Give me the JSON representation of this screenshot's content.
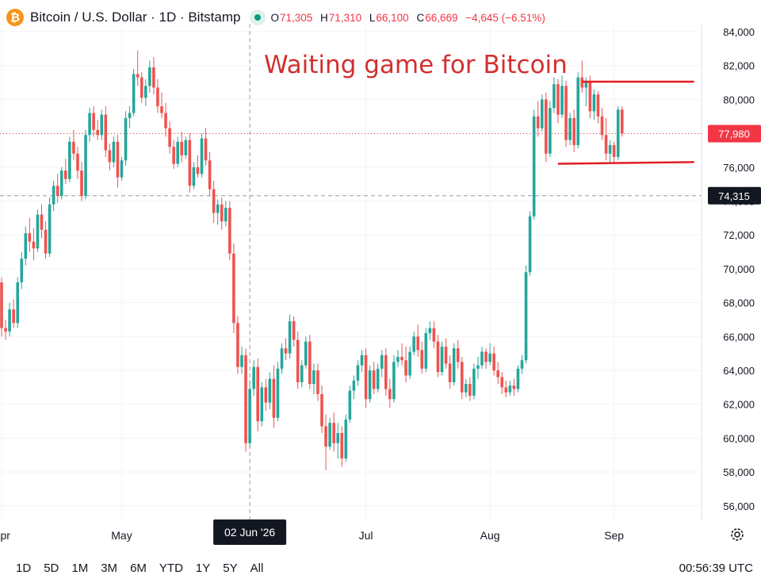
{
  "header": {
    "coin_icon": "bitcoin-icon",
    "symbol": "Bitcoin / U.S. Dollar · 1D · Bitstamp",
    "o_label": "O",
    "o_value": "71,305",
    "h_label": "H",
    "h_value": "71,310",
    "l_label": "L",
    "l_value": "66,100",
    "c_label": "C",
    "c_value": "66,669",
    "change": "−4,645 (−6.51%)"
  },
  "annotation": {
    "text": "Waiting game for Bitcoin",
    "color": "#d32f2f"
  },
  "price_labels": {
    "last": "77,980",
    "crosshair": "74,315",
    "crosshair_date": "02 Jun '26"
  },
  "timeframes": [
    "1D",
    "5D",
    "1M",
    "3M",
    "6M",
    "YTD",
    "1Y",
    "5Y",
    "All"
  ],
  "clock": "00:56:39 UTC",
  "colors": {
    "up": "#26a69a",
    "down": "#ef5350",
    "trendline": "#e31b23",
    "last_price": "#f23645"
  },
  "chart_data": {
    "type": "candlestick",
    "y_ticks": [
      "84,000",
      "82,000",
      "80,000",
      "78,000",
      "76,000",
      "74,000",
      "72,000",
      "70,000",
      "68,000",
      "66,000",
      "64,000",
      "62,000",
      "60,000",
      "58,000",
      "56,000"
    ],
    "x_ticks": [
      {
        "label": "Apr",
        "date": "2026-04-01"
      },
      {
        "label": "May",
        "date": "2026-05-01"
      },
      {
        "label": "Jul",
        "date": "2026-07-01"
      },
      {
        "label": "Aug",
        "date": "2026-08-01"
      },
      {
        "label": "Sep",
        "date": "2026-09-01"
      }
    ],
    "crosshair": {
      "date": "2026-06-02",
      "price": 74315
    },
    "last_price": 77980,
    "ylim": [
      55000,
      85500
    ],
    "grid": true,
    "trendlines": [
      {
        "from": [
          "2026-08-24",
          81050
        ],
        "to": [
          "2026-09-21",
          81050
        ]
      },
      {
        "from": [
          "2026-08-18",
          76200
        ],
        "to": [
          "2026-09-21",
          76300
        ]
      }
    ],
    "candles_ohlc": [
      [
        69200,
        69500,
        66000,
        66500
      ],
      [
        66500,
        67000,
        65800,
        66300
      ],
      [
        66300,
        68000,
        66000,
        67600
      ],
      [
        67600,
        68200,
        66500,
        66800
      ],
      [
        66800,
        69500,
        66500,
        69200
      ],
      [
        69200,
        71000,
        68800,
        70600
      ],
      [
        70600,
        72500,
        70200,
        72100
      ],
      [
        72100,
        73000,
        71000,
        71600
      ],
      [
        71600,
        72400,
        70500,
        71200
      ],
      [
        71200,
        73500,
        71000,
        73200
      ],
      [
        73200,
        73800,
        71800,
        72300
      ],
      [
        72300,
        72800,
        70600,
        70900
      ],
      [
        70900,
        74200,
        70700,
        73800
      ],
      [
        73800,
        75200,
        73400,
        74900
      ],
      [
        74900,
        75600,
        73900,
        74300
      ],
      [
        74300,
        76000,
        74100,
        75800
      ],
      [
        75800,
        76500,
        75000,
        75300
      ],
      [
        75300,
        77800,
        75100,
        77500
      ],
      [
        77500,
        78200,
        76400,
        76800
      ],
      [
        76800,
        77200,
        75300,
        75800
      ],
      [
        75800,
        76300,
        74000,
        74300
      ],
      [
        74300,
        78200,
        74100,
        77900
      ],
      [
        77900,
        79500,
        77500,
        79200
      ],
      [
        79200,
        79600,
        77800,
        78200
      ],
      [
        78200,
        78800,
        77600,
        77900
      ],
      [
        77900,
        79400,
        77600,
        79100
      ],
      [
        79100,
        79600,
        76600,
        77000
      ],
      [
        77000,
        77400,
        75800,
        76300
      ],
      [
        76300,
        77800,
        76000,
        77500
      ],
      [
        77500,
        77900,
        74800,
        75400
      ],
      [
        75400,
        76600,
        75200,
        76400
      ],
      [
        76400,
        79300,
        76100,
        78900
      ],
      [
        78900,
        79600,
        78300,
        79200
      ],
      [
        79200,
        81800,
        79000,
        81500
      ],
      [
        81500,
        82900,
        80800,
        81300
      ],
      [
        81300,
        81600,
        79800,
        80100
      ],
      [
        80100,
        81200,
        79600,
        80800
      ],
      [
        80800,
        82300,
        80400,
        81900
      ],
      [
        81900,
        82500,
        80300,
        80700
      ],
      [
        80700,
        81200,
        79200,
        79600
      ],
      [
        79600,
        80400,
        78900,
        79200
      ],
      [
        79200,
        79800,
        77800,
        78300
      ],
      [
        78300,
        78700,
        76800,
        77200
      ],
      [
        77200,
        77600,
        75900,
        76200
      ],
      [
        76200,
        77800,
        76000,
        77500
      ],
      [
        77500,
        78100,
        76300,
        76700
      ],
      [
        76700,
        77800,
        76500,
        77600
      ],
      [
        77600,
        78000,
        74500,
        74900
      ],
      [
        74900,
        76300,
        74700,
        76000
      ],
      [
        76000,
        76700,
        75400,
        75600
      ],
      [
        75600,
        78000,
        75400,
        77700
      ],
      [
        77700,
        78300,
        76100,
        76400
      ],
      [
        76400,
        76900,
        74300,
        74700
      ],
      [
        74700,
        75200,
        72700,
        73300
      ],
      [
        73300,
        74100,
        72600,
        73800
      ],
      [
        73800,
        74200,
        72300,
        72800
      ],
      [
        72800,
        74000,
        72500,
        73600
      ],
      [
        73600,
        74000,
        70500,
        70900
      ],
      [
        70900,
        71500,
        66200,
        66800
      ],
      [
        66800,
        67200,
        63800,
        64200
      ],
      [
        64200,
        65400,
        63800,
        64900
      ],
      [
        64900,
        65300,
        59200,
        59700
      ],
      [
        59700,
        63400,
        59400,
        62900
      ],
      [
        62900,
        64600,
        62500,
        64200
      ],
      [
        64200,
        64700,
        60400,
        61000
      ],
      [
        61000,
        63300,
        60700,
        63000
      ],
      [
        63000,
        63500,
        61600,
        62100
      ],
      [
        62100,
        63900,
        61700,
        63500
      ],
      [
        63500,
        64300,
        60600,
        61200
      ],
      [
        61200,
        64500,
        61000,
        64100
      ],
      [
        64100,
        65600,
        63800,
        65300
      ],
      [
        65300,
        65900,
        64600,
        65000
      ],
      [
        65000,
        67300,
        64700,
        66900
      ],
      [
        66900,
        67200,
        65400,
        65800
      ],
      [
        65800,
        66300,
        62900,
        63300
      ],
      [
        63300,
        64600,
        63000,
        64300
      ],
      [
        64300,
        66000,
        64100,
        65700
      ],
      [
        65700,
        66100,
        62900,
        63200
      ],
      [
        63200,
        64400,
        62600,
        64000
      ],
      [
        64000,
        64400,
        62200,
        62600
      ],
      [
        62600,
        63100,
        60300,
        60700
      ],
      [
        60700,
        61400,
        58100,
        59500
      ],
      [
        59500,
        61200,
        59300,
        60900
      ],
      [
        60900,
        61500,
        59200,
        59700
      ],
      [
        59700,
        60900,
        58800,
        60300
      ],
      [
        60300,
        60700,
        58300,
        58800
      ],
      [
        58800,
        61400,
        58600,
        61100
      ],
      [
        61100,
        63100,
        60900,
        62800
      ],
      [
        62800,
        63700,
        62300,
        63400
      ],
      [
        63400,
        64600,
        63100,
        64300
      ],
      [
        64300,
        65200,
        63900,
        64900
      ],
      [
        64900,
        65300,
        61800,
        62300
      ],
      [
        62300,
        64300,
        62100,
        64000
      ],
      [
        64000,
        64500,
        62600,
        62900
      ],
      [
        62900,
        64400,
        62700,
        64100
      ],
      [
        64100,
        65200,
        63600,
        64900
      ],
      [
        64900,
        65300,
        62500,
        62900
      ],
      [
        62900,
        63500,
        61800,
        62300
      ],
      [
        62300,
        64900,
        62100,
        64500
      ],
      [
        64500,
        65200,
        64200,
        64800
      ],
      [
        64800,
        65600,
        64300,
        64600
      ],
      [
        64600,
        65400,
        63300,
        63700
      ],
      [
        63700,
        65400,
        63500,
        65100
      ],
      [
        65100,
        66300,
        64900,
        66000
      ],
      [
        66000,
        66700,
        64800,
        65200
      ],
      [
        65200,
        65700,
        63800,
        64100
      ],
      [
        64100,
        66500,
        63900,
        66200
      ],
      [
        66200,
        66900,
        65800,
        66500
      ],
      [
        66500,
        66900,
        65300,
        65700
      ],
      [
        65700,
        66100,
        63600,
        63900
      ],
      [
        63900,
        65700,
        63700,
        65400
      ],
      [
        65400,
        65900,
        64100,
        64400
      ],
      [
        64400,
        64900,
        62900,
        63300
      ],
      [
        63300,
        65600,
        63100,
        65300
      ],
      [
        65300,
        65800,
        64100,
        64500
      ],
      [
        64500,
        64800,
        62300,
        62700
      ],
      [
        62700,
        63500,
        62400,
        63200
      ],
      [
        63200,
        63600,
        62200,
        62500
      ],
      [
        62500,
        64400,
        62300,
        64100
      ],
      [
        64100,
        64800,
        63500,
        64300
      ],
      [
        64300,
        65400,
        64100,
        65100
      ],
      [
        65100,
        65300,
        64100,
        64500
      ],
      [
        64500,
        65600,
        64300,
        65000
      ],
      [
        65000,
        65400,
        63700,
        64000
      ],
      [
        64000,
        64500,
        63200,
        63600
      ],
      [
        63600,
        63900,
        62600,
        63000
      ],
      [
        63000,
        63400,
        62400,
        62700
      ],
      [
        62700,
        63400,
        62500,
        63100
      ],
      [
        63100,
        63500,
        62500,
        62900
      ],
      [
        62900,
        64300,
        62700,
        64100
      ],
      [
        64100,
        64900,
        63800,
        64600
      ],
      [
        64600,
        70200,
        64400,
        69800
      ],
      [
        69800,
        73400,
        69600,
        73100
      ],
      [
        73100,
        79400,
        72900,
        79000
      ],
      [
        79000,
        79900,
        77800,
        78300
      ],
      [
        78300,
        80300,
        78100,
        80000
      ],
      [
        80000,
        80400,
        76300,
        76800
      ],
      [
        76800,
        79900,
        76600,
        79500
      ],
      [
        79500,
        81300,
        79200,
        80900
      ],
      [
        80900,
        81200,
        78600,
        79100
      ],
      [
        79100,
        81400,
        78900,
        80800
      ],
      [
        80800,
        81100,
        77200,
        77600
      ],
      [
        77600,
        79200,
        77300,
        78900
      ],
      [
        78900,
        79400,
        76900,
        77300
      ],
      [
        77300,
        81600,
        77100,
        81300
      ],
      [
        81300,
        82300,
        80400,
        80700
      ],
      [
        80700,
        81300,
        79600,
        81100
      ],
      [
        81100,
        81400,
        78900,
        79300
      ],
      [
        79300,
        80600,
        78800,
        80300
      ],
      [
        80300,
        80500,
        78600,
        79000
      ],
      [
        79000,
        79500,
        77600,
        77900
      ],
      [
        77900,
        78900,
        76400,
        76800
      ],
      [
        76800,
        77600,
        76200,
        77300
      ],
      [
        77300,
        77500,
        76300,
        76600
      ],
      [
        76600,
        79600,
        76400,
        79400
      ],
      [
        79400,
        79600,
        77800,
        77980
      ]
    ]
  }
}
